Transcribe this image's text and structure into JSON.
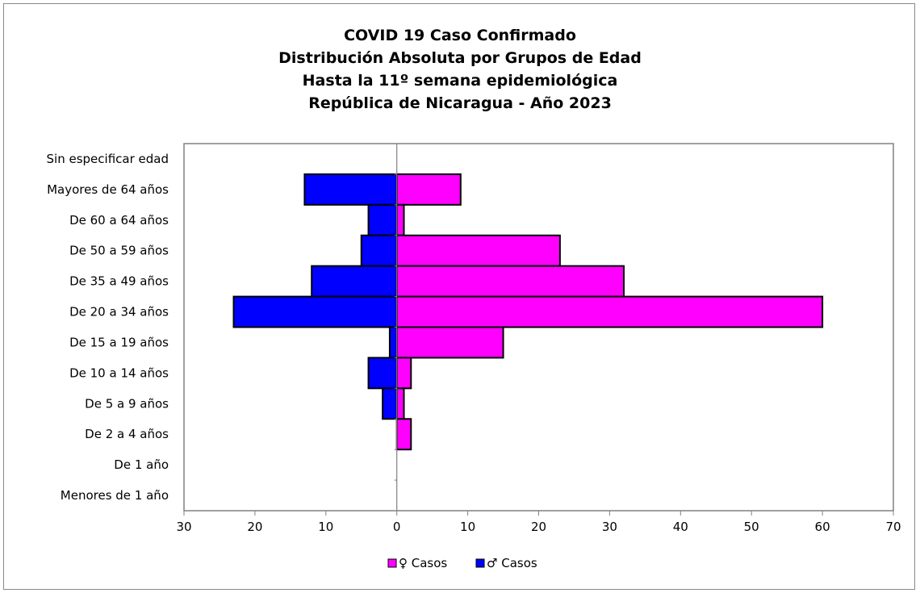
{
  "titles": {
    "line1": "COVID 19 Caso Confirmado",
    "line2": "Distribución Absoluta por Grupos de Edad",
    "line3": "Hasta la 11º semana epidemiológica",
    "line4": "República de Nicaragua - Año 2023"
  },
  "colors": {
    "female": "#ff00ff",
    "male": "#0000ff"
  },
  "chart_data": {
    "type": "bar",
    "orientation": "horizontal-population-pyramid",
    "categories": [
      "Sin especificar edad",
      "Mayores de 64 años",
      "De 60 a 64 años",
      "De 50 a 59 años",
      "De 35 a 49 años",
      "De 20 a 34 años",
      "De 15 a 19 años",
      "De 10 a 14 años",
      "De 5 a 9 años",
      "De 2 a 4 años",
      "De 1 año",
      "Menores de 1 año"
    ],
    "series": [
      {
        "name": "♀ Casos",
        "direction": "right",
        "color": "#ff00ff",
        "values": [
          0,
          9,
          1,
          23,
          32,
          60,
          15,
          2,
          1,
          2,
          0,
          0
        ]
      },
      {
        "name": "♂ Casos",
        "direction": "left",
        "color": "#0000ff",
        "values": [
          0,
          13,
          4,
          5,
          12,
          23,
          1,
          4,
          2,
          0,
          0,
          0
        ]
      }
    ],
    "xlim": [
      -30,
      70
    ],
    "xticks": [
      -30,
      -20,
      -10,
      0,
      10,
      20,
      30,
      40,
      50,
      60,
      70
    ],
    "xtick_labels": [
      "30",
      "20",
      "10",
      "0",
      "10",
      "20",
      "30",
      "40",
      "50",
      "60",
      "70"
    ],
    "grid": false,
    "legend": "bottom"
  }
}
